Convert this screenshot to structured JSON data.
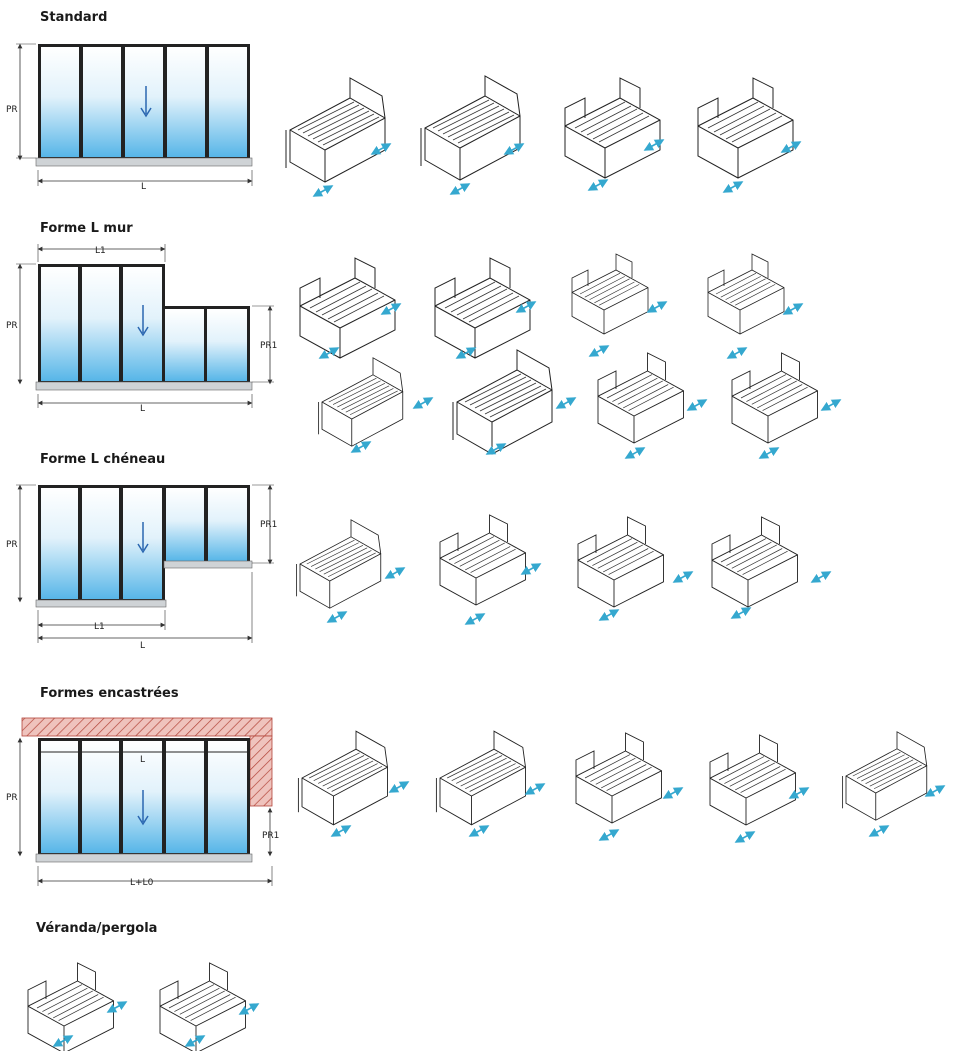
{
  "sections": [
    {
      "id": "standard",
      "title": "Standard",
      "labels": {
        "height": "PR",
        "width": "L"
      },
      "variant_count": 4
    },
    {
      "id": "forme-l-mur",
      "title": "Forme L mur",
      "labels": {
        "height": "PR",
        "width": "L",
        "width_part": "L1",
        "height_part": "PR1"
      },
      "variant_count": 8
    },
    {
      "id": "forme-l-cheneau",
      "title": "Forme L chéneau",
      "labels": {
        "height": "PR",
        "width": "L",
        "width_part": "L1",
        "height_part": "PR1"
      },
      "variant_count": 4
    },
    {
      "id": "formes-encastrees",
      "title": "Formes encastrées",
      "labels": {
        "height": "PR",
        "width": "L+L0",
        "inner_width": "L",
        "height_part": "PR1"
      },
      "variant_count": 5
    },
    {
      "id": "veranda-pergola",
      "title": "Véranda/pergola",
      "variant_count": 2
    }
  ],
  "colors": {
    "frame": "#222222",
    "glass_top": "#ffffff",
    "glass_bottom": "#57b6e8",
    "rail": "#cfd3d6",
    "arrow_blue": "#2a66b0",
    "motion_arrow": "#35a8cf",
    "wall_hatch": "#e8b3ad",
    "wall_hatch_line": "#b3453a"
  }
}
